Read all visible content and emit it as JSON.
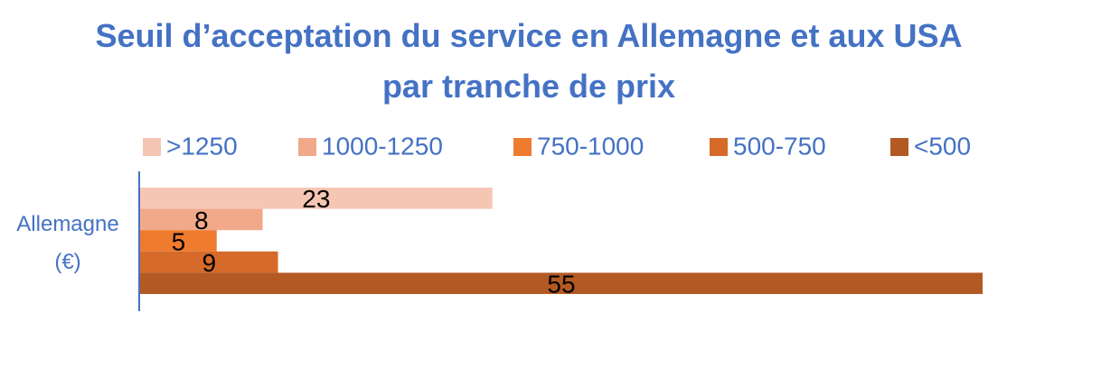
{
  "chart_data": {
    "type": "bar",
    "orientation": "horizontal",
    "title": "Seuil d’acceptation du service en Allemagne et aux USA par tranche de prix",
    "categories": [
      "Allemagne (€)"
    ],
    "series": [
      {
        "name": ">1250",
        "color": "#f5c6b4",
        "values": [
          23
        ]
      },
      {
        "name": "1000-1250",
        "color": "#f1a98a",
        "values": [
          8
        ]
      },
      {
        "name": "750-1000",
        "color": "#ef7b2e",
        "values": [
          5
        ]
      },
      {
        "name": "500-750",
        "color": "#d56a2a",
        "values": [
          9
        ]
      },
      {
        "name": "<500",
        "color": "#b35a24",
        "values": [
          55
        ]
      }
    ],
    "xlim": [
      0,
      55
    ],
    "legend": "top"
  }
}
